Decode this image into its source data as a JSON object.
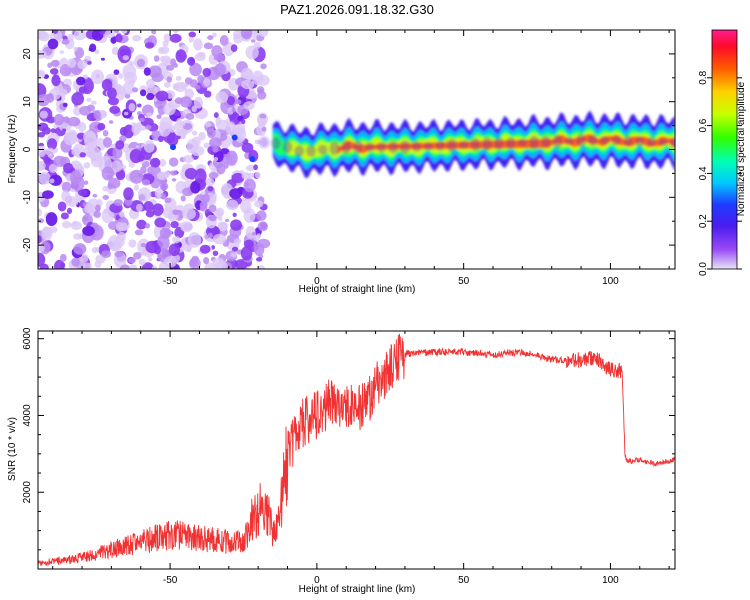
{
  "chart_data": [
    {
      "type": "heatmap",
      "title": "PAZ1.2026.091.18.32.G30",
      "xlabel": "Height of straight line (km)",
      "ylabel": "Frequency (Hz)",
      "xlim": [
        -95,
        122
      ],
      "ylim": [
        -25,
        25
      ],
      "x_ticks": [
        -50,
        0,
        50,
        100
      ],
      "y_ticks": [
        -20,
        -10,
        0,
        10,
        20
      ],
      "colorbar": {
        "label": "Normalized spectral amplitude",
        "range": [
          0,
          1
        ],
        "ticks": [
          0.0,
          0.2,
          0.4,
          0.6,
          0.8
        ]
      },
      "description_points": {
        "noise_region_x": [
          -95,
          -18
        ],
        "signal_band": [
          {
            "x": -15,
            "f": 1.5,
            "amp": 0.5
          },
          {
            "x": -5,
            "f": -0.5,
            "amp": 0.7
          },
          {
            "x": 10,
            "f": 0.5,
            "amp": 0.8
          },
          {
            "x": 30,
            "f": 0.5,
            "amp": 0.75
          },
          {
            "x": 60,
            "f": 1.2,
            "amp": 0.7
          },
          {
            "x": 95,
            "f": 2.0,
            "amp": 0.85
          },
          {
            "x": 120,
            "f": 1.5,
            "amp": 0.8
          }
        ]
      }
    },
    {
      "type": "line",
      "xlabel": "Height of straight line (km)",
      "ylabel": "SNR (10 * v/v)",
      "xlim": [
        -95,
        122
      ],
      "ylim": [
        0,
        6200
      ],
      "x_ticks": [
        -50,
        0,
        50,
        100
      ],
      "y_ticks": [
        2000,
        4000,
        6000
      ],
      "series": [
        {
          "name": "SNR",
          "color": "#f03232",
          "x": [
            -95,
            -80,
            -70,
            -60,
            -50,
            -40,
            -30,
            -25,
            -22,
            -18,
            -15,
            -13,
            -10,
            -5,
            0,
            5,
            10,
            15,
            20,
            25,
            30,
            40,
            50,
            60,
            70,
            80,
            90,
            95,
            100,
            104,
            105,
            106,
            110,
            115,
            122
          ],
          "y": [
            150,
            300,
            500,
            700,
            900,
            800,
            700,
            700,
            1300,
            1700,
            1000,
            1200,
            3000,
            3800,
            4000,
            4400,
            4200,
            4200,
            4700,
            5300,
            5600,
            5650,
            5650,
            5600,
            5650,
            5450,
            5450,
            5500,
            5200,
            5150,
            2900,
            2800,
            2850,
            2750,
            2850
          ]
        }
      ]
    }
  ]
}
